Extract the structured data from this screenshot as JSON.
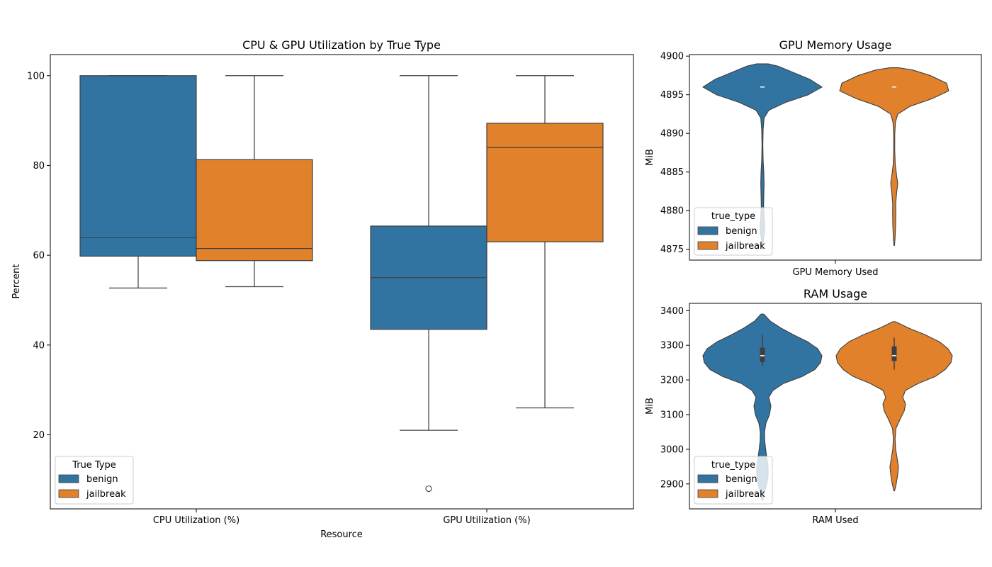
{
  "colors": {
    "benign": "#3274a1",
    "jailbreak": "#e1812c",
    "edge": "#3f3f3f"
  },
  "chart_data": [
    {
      "type": "box",
      "title": "CPU & GPU Utilization by True Type",
      "xlabel": "Resource",
      "ylabel": "Percent",
      "ylim": [
        3.5,
        104.7
      ],
      "yticks": [
        20,
        40,
        60,
        80,
        100
      ],
      "categories": [
        "CPU Utilization (%)",
        "GPU Utilization (%)"
      ],
      "legend": {
        "title": "True Type",
        "position": "lower-left",
        "entries": [
          "benign",
          "jailbreak"
        ]
      },
      "series": [
        {
          "name": "benign",
          "boxes": [
            {
              "whisker_low": 52.7,
              "q1": 59.8,
              "median": 63.9,
              "q3": 100.0,
              "whisker_high": 100.0,
              "outliers": []
            },
            {
              "whisker_low": 21.0,
              "q1": 43.5,
              "median": 55.0,
              "q3": 66.5,
              "whisker_high": 100.0,
              "outliers": [
                8.0
              ]
            }
          ]
        },
        {
          "name": "jailbreak",
          "boxes": [
            {
              "whisker_low": 53.0,
              "q1": 58.8,
              "median": 61.5,
              "q3": 81.3,
              "whisker_high": 100.0,
              "outliers": []
            },
            {
              "whisker_low": 26.0,
              "q1": 63.0,
              "median": 84.0,
              "q3": 89.4,
              "whisker_high": 100.0,
              "outliers": []
            }
          ]
        }
      ]
    },
    {
      "type": "violin",
      "title": "GPU Memory Usage",
      "xlabel": "GPU Memory Used",
      "ylabel": "MiB",
      "ylim": [
        4873.6,
        4900.2
      ],
      "yticks": [
        4875,
        4880,
        4885,
        4890,
        4895,
        4900
      ],
      "legend": {
        "title": "true_type",
        "position": "lower-left",
        "entries": [
          "benign",
          "jailbreak"
        ]
      },
      "series": [
        {
          "name": "benign",
          "box": {
            "q1": 4896,
            "median": 4896,
            "q3": 4896,
            "whisker_low": 4896,
            "whisker_high": 4896
          },
          "density": [
            [
              4875.0,
              0.4
            ],
            [
              4876.2,
              1.3
            ],
            [
              4877.2,
              2.7
            ],
            [
              4878.0,
              3.3
            ],
            [
              4879.0,
              2.4
            ],
            [
              4880.5,
              1.6
            ],
            [
              4882.0,
              1.9
            ],
            [
              4883.5,
              2.3
            ],
            [
              4885.0,
              1.9
            ],
            [
              4886.5,
              1.0
            ],
            [
              4888.5,
              0.6
            ],
            [
              4890.5,
              1.0
            ],
            [
              4892.0,
              2.3
            ],
            [
              4893.0,
              9.0
            ],
            [
              4894.0,
              32.0
            ],
            [
              4895.0,
              64.0
            ],
            [
              4896.0,
              83.0
            ],
            [
              4897.0,
              66.0
            ],
            [
              4898.0,
              40.0
            ],
            [
              4898.7,
              22.0
            ],
            [
              4899.0,
              8.0
            ]
          ]
        },
        {
          "name": "jailbreak",
          "box": {
            "q1": 4896,
            "median": 4896,
            "q3": 4896,
            "whisker_low": 4896,
            "whisker_high": 4896
          },
          "density": [
            [
              4875.5,
              0.4
            ],
            [
              4876.5,
              1.2
            ],
            [
              4878.0,
              1.9
            ],
            [
              4879.5,
              2.2
            ],
            [
              4881.0,
              2.1
            ],
            [
              4882.5,
              3.6
            ],
            [
              4883.5,
              4.9
            ],
            [
              4884.5,
              3.4
            ],
            [
              4886.0,
              1.4
            ],
            [
              4888.0,
              0.7
            ],
            [
              4890.0,
              0.8
            ],
            [
              4891.5,
              1.8
            ],
            [
              4892.5,
              5.0
            ],
            [
              4893.5,
              22.0
            ],
            [
              4894.5,
              53.0
            ],
            [
              4895.5,
              76.0
            ],
            [
              4896.5,
              73.0
            ],
            [
              4897.5,
              50.0
            ],
            [
              4898.2,
              26.0
            ],
            [
              4898.5,
              6.0
            ]
          ]
        }
      ]
    },
    {
      "type": "violin",
      "title": "RAM Usage",
      "xlabel": "RAM Used",
      "ylabel": "MiB",
      "ylim": [
        2828.0,
        3421.0
      ],
      "yticks": [
        2900,
        3000,
        3100,
        3200,
        3300,
        3400
      ],
      "legend": {
        "title": "true_type",
        "position": "lower-left",
        "entries": [
          "benign",
          "jailbreak"
        ]
      },
      "series": [
        {
          "name": "benign",
          "box": {
            "q1": 3252,
            "median": 3270,
            "q3": 3293,
            "whisker_low": 3240,
            "whisker_high": 3330
          },
          "density": [
            [
              2852,
              0.5
            ],
            [
              2875,
              2.8
            ],
            [
              2900,
              6.2
            ],
            [
              2925,
              8.0
            ],
            [
              2950,
              8.0
            ],
            [
              2975,
              6.2
            ],
            [
              3000,
              4.6
            ],
            [
              3025,
              3.2
            ],
            [
              3050,
              3.0
            ],
            [
              3075,
              5.0
            ],
            [
              3100,
              10.0
            ],
            [
              3125,
              12.0
            ],
            [
              3150,
              9.0
            ],
            [
              3170,
              15.0
            ],
            [
              3190,
              30.0
            ],
            [
              3210,
              56.0
            ],
            [
              3230,
              74.0
            ],
            [
              3250,
              82.0
            ],
            [
              3270,
              84.0
            ],
            [
              3290,
              78.0
            ],
            [
              3310,
              64.0
            ],
            [
              3330,
              44.0
            ],
            [
              3350,
              26.0
            ],
            [
              3370,
              11.0
            ],
            [
              3390,
              2.0
            ]
          ]
        },
        {
          "name": "jailbreak",
          "box": {
            "q1": 3255,
            "median": 3270,
            "q3": 3297,
            "whisker_low": 3230,
            "whisker_high": 3322
          },
          "density": [
            [
              2880,
              0.5
            ],
            [
              2900,
              2.8
            ],
            [
              2925,
              4.8
            ],
            [
              2950,
              6.0
            ],
            [
              2975,
              4.0
            ],
            [
              3000,
              2.0
            ],
            [
              3030,
              1.2
            ],
            [
              3060,
              2.4
            ],
            [
              3090,
              9.0
            ],
            [
              3110,
              14.0
            ],
            [
              3130,
              16.0
            ],
            [
              3150,
              12.0
            ],
            [
              3170,
              16.0
            ],
            [
              3190,
              34.0
            ],
            [
              3210,
              58.0
            ],
            [
              3230,
              72.0
            ],
            [
              3250,
              80.0
            ],
            [
              3270,
              82.0
            ],
            [
              3290,
              76.0
            ],
            [
              3310,
              64.0
            ],
            [
              3330,
              44.0
            ],
            [
              3350,
              20.0
            ],
            [
              3368,
              2.0
            ]
          ]
        }
      ]
    }
  ]
}
